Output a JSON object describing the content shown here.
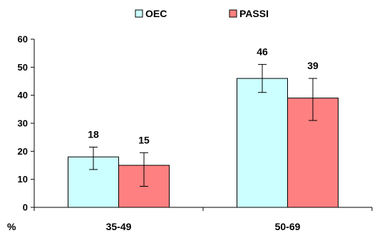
{
  "chart_data": {
    "type": "bar",
    "categories": [
      "35-49",
      "50-69"
    ],
    "series": [
      {
        "name": "OEC",
        "values": [
          18,
          46
        ],
        "error_low": [
          13.5,
          41
        ],
        "error_high": [
          21.5,
          51
        ],
        "color": "#ccffff"
      },
      {
        "name": "PASSI",
        "values": [
          15,
          39
        ],
        "error_low": [
          7.5,
          31
        ],
        "error_high": [
          19.5,
          46
        ],
        "color": "#ff8080"
      }
    ],
    "data_labels": [
      [
        "18",
        "46"
      ],
      [
        "15",
        "39"
      ]
    ],
    "title": "",
    "xlabel": "",
    "ylabel": "%",
    "ylim": [
      0,
      60
    ],
    "yticks": [
      0,
      10,
      20,
      30,
      40,
      50,
      60
    ],
    "ytick_labels": [
      "0",
      "10",
      "20",
      "30",
      "40",
      "50",
      "60"
    ],
    "grid": false,
    "legend": "top-center"
  }
}
